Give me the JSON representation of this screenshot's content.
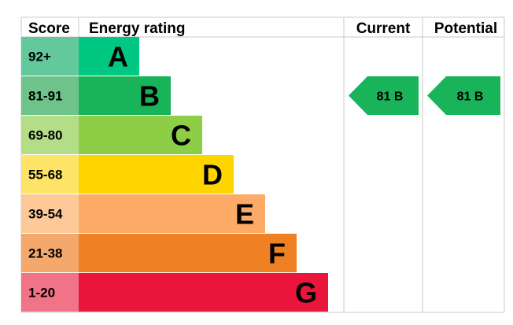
{
  "headers": {
    "score": "Score",
    "energy_rating": "Energy rating",
    "current": "Current",
    "potential": "Potential"
  },
  "chart_data": {
    "type": "bar",
    "bands": [
      {
        "score": "92+",
        "letter": "A",
        "color": "#00c781",
        "score_bg": "#63c99d"
      },
      {
        "score": "81-91",
        "letter": "B",
        "color": "#19b459",
        "score_bg": "#6dc38a"
      },
      {
        "score": "69-80",
        "letter": "C",
        "color": "#8dce46",
        "score_bg": "#b4dd88"
      },
      {
        "score": "55-68",
        "letter": "D",
        "color": "#ffd500",
        "score_bg": "#fde466"
      },
      {
        "score": "39-54",
        "letter": "E",
        "color": "#fcaa65",
        "score_bg": "#fdc998"
      },
      {
        "score": "21-38",
        "letter": "F",
        "color": "#ef8023",
        "score_bg": "#f4a86b"
      },
      {
        "score": "1-20",
        "letter": "G",
        "color": "#e9153b",
        "score_bg": "#f07387"
      }
    ],
    "current": {
      "value": 81,
      "letter": "B",
      "label": "81 B",
      "color": "#19b459"
    },
    "potential": {
      "value": 81,
      "letter": "B",
      "label": "81 B",
      "color": "#19b459"
    }
  }
}
